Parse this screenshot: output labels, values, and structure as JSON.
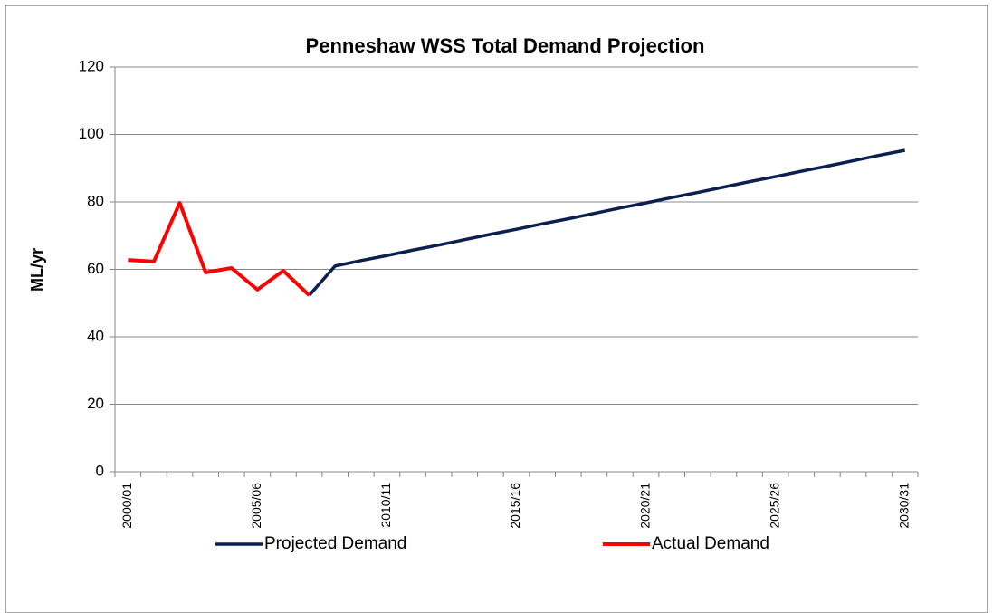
{
  "chart_data": {
    "type": "line",
    "title": "Penneshaw WSS Total Demand Projection",
    "y_label": "ML/yr",
    "categories": [
      "2000/01",
      null,
      null,
      null,
      null,
      "2005/06",
      null,
      null,
      null,
      null,
      "2010/11",
      null,
      null,
      null,
      null,
      "2015/16",
      null,
      null,
      null,
      null,
      "2020/21",
      null,
      null,
      null,
      null,
      "2025/26",
      null,
      null,
      null,
      null,
      "2030/31"
    ],
    "series": [
      {
        "name": "Projected Demand",
        "color": "#0d1f4f",
        "values": [
          null,
          null,
          null,
          null,
          null,
          null,
          null,
          52.3,
          61.0,
          62.6,
          64.1,
          65.7,
          67.2,
          68.8,
          70.4,
          71.9,
          73.5,
          75.0,
          76.6,
          78.2,
          79.7,
          81.3,
          82.8,
          84.4,
          86.0,
          87.5,
          89.1,
          90.6,
          92.2,
          93.8,
          95.3
        ]
      },
      {
        "name": "Actual Demand",
        "color": "#ff0000",
        "values": [
          62.8,
          62.3,
          79.7,
          59.1,
          60.4,
          54.0,
          59.6,
          52.3,
          null,
          null,
          null,
          null,
          null,
          null,
          null,
          null,
          null,
          null,
          null,
          null,
          null,
          null,
          null,
          null,
          null,
          null,
          null,
          null,
          null,
          null,
          null
        ]
      }
    ],
    "ylim": [
      0,
      120
    ],
    "yticks": [
      0,
      20,
      40,
      60,
      80,
      100,
      120
    ],
    "grid": true,
    "legend": "bottom"
  }
}
